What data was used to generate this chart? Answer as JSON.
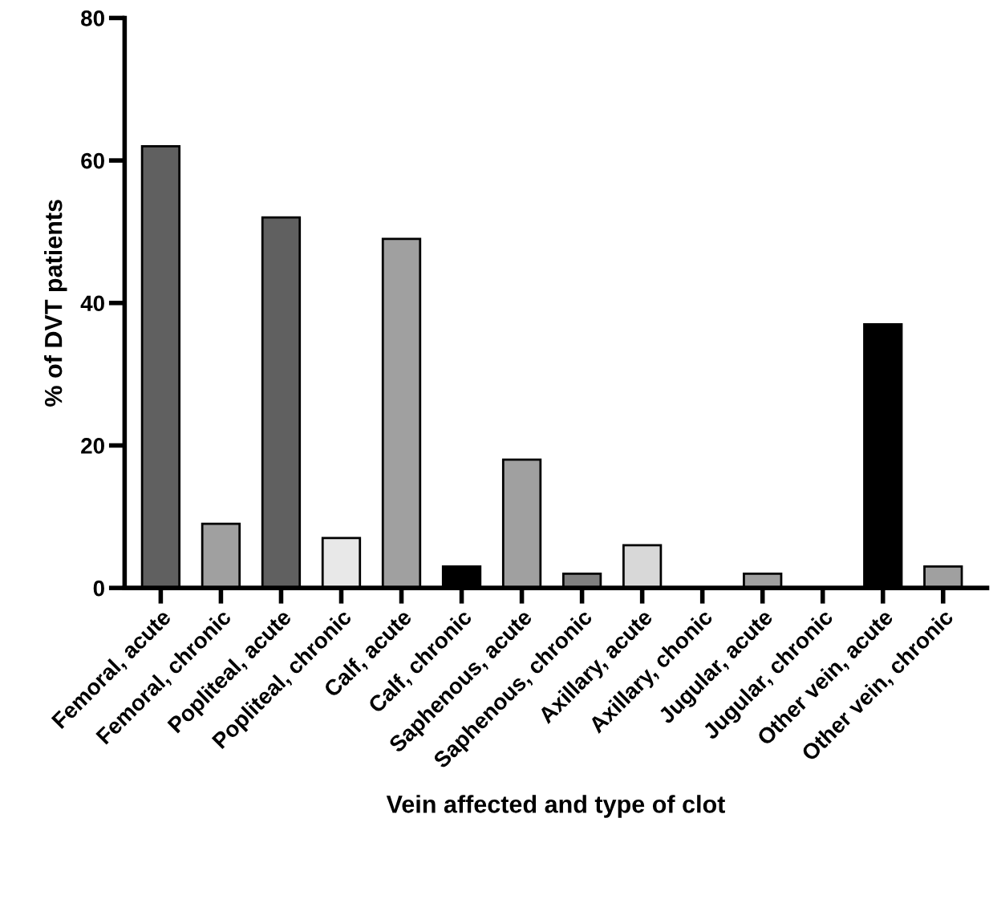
{
  "chart_data": {
    "type": "bar",
    "xlabel": "Vein affected and type of clot",
    "ylabel": "% of DVT patients",
    "categories": [
      "Femoral, acute",
      "Femoral, chronic",
      "Popliteal, acute",
      "Popliteal, chronic",
      "Calf, acute",
      "Calf, chronic",
      "Saphenous, acute",
      "Saphenous, chronic",
      "Axillary, acute",
      "Axillary, chonic",
      "Jugular, acute",
      "Jugular, chronic",
      "Other vein, acute",
      "Other vein, chronic"
    ],
    "values": [
      62,
      9,
      52,
      7,
      49,
      3,
      18,
      2,
      6,
      0,
      2,
      0,
      37,
      3
    ],
    "colors": [
      "#606060",
      "#a0a0a0",
      "#606060",
      "#e8e8e8",
      "#a0a0a0",
      "#000000",
      "#a0a0a0",
      "#808080",
      "#d8d8d8",
      null,
      "#a0a0a0",
      null,
      "#000000",
      "#a0a0a0"
    ],
    "ylim": [
      0,
      80
    ],
    "yticks": [
      0,
      20,
      40,
      60,
      80
    ],
    "grid": false,
    "legend": false
  }
}
